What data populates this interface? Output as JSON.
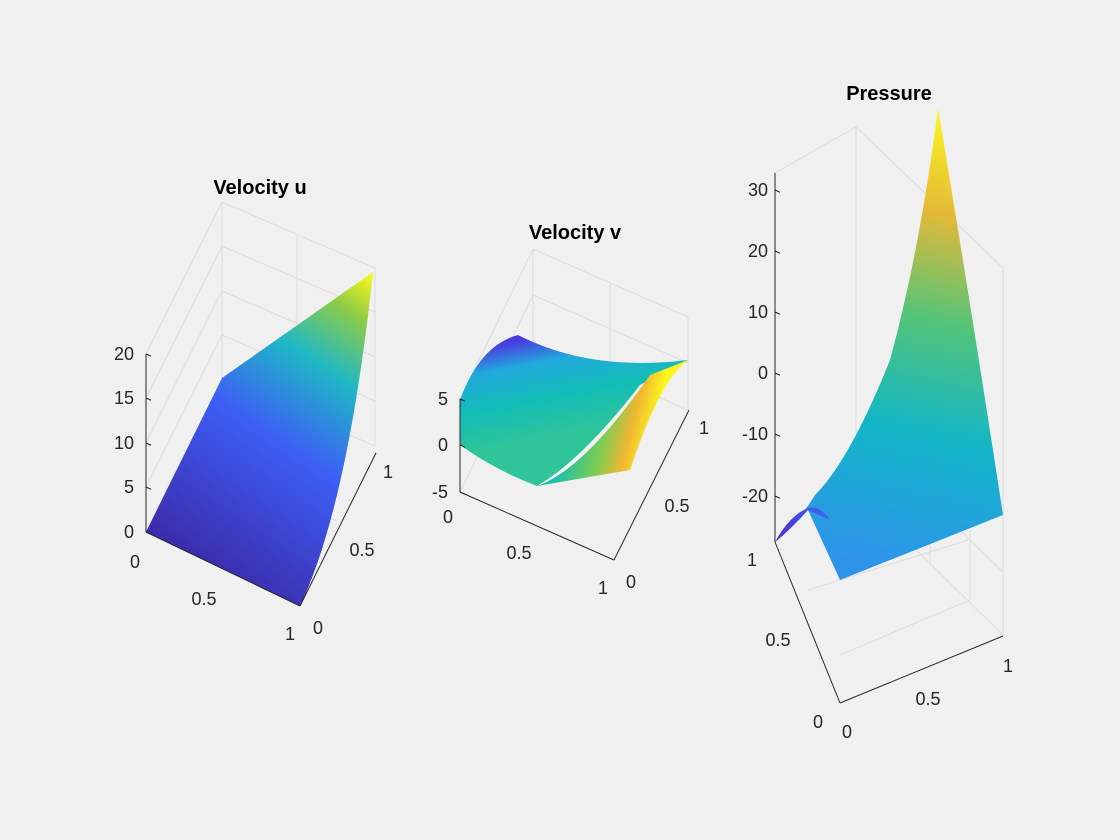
{
  "window": {
    "background": "#f0f0f0"
  },
  "chart_data": [
    {
      "type": "surface",
      "title": "Velocity u",
      "x_ticks": [
        "0",
        "0.5",
        "1"
      ],
      "y_ticks": [
        "0",
        "0.5",
        "1"
      ],
      "z_ticks": [
        "0",
        "5",
        "10",
        "15",
        "20"
      ],
      "zlim": [
        0,
        20
      ],
      "corner_values": {
        "x0_y0": 0,
        "x1_y0": 0,
        "x0_y1": 0,
        "x1_y1": 20
      },
      "colormap": "parula"
    },
    {
      "type": "surface",
      "title": "Velocity v",
      "x_ticks": [
        "0",
        "0.5",
        "1"
      ],
      "y_ticks": [
        "0",
        "0.5",
        "1"
      ],
      "z_ticks": [
        "-5",
        "0",
        "5"
      ],
      "zlim": [
        -5,
        5
      ],
      "extrema": {
        "max": 5,
        "min": -5
      },
      "colormap": "parula"
    },
    {
      "type": "surface",
      "title": "Pressure",
      "x_ticks": [
        "0",
        "0.5",
        "1"
      ],
      "y_ticks": [
        "0",
        "0.5",
        "1"
      ],
      "z_ticks": [
        "-20",
        "-10",
        "0",
        "10",
        "20",
        "30"
      ],
      "zlim": [
        -25,
        35
      ],
      "extrema": {
        "max": 35,
        "min": -25
      },
      "colormap": "parula"
    }
  ]
}
